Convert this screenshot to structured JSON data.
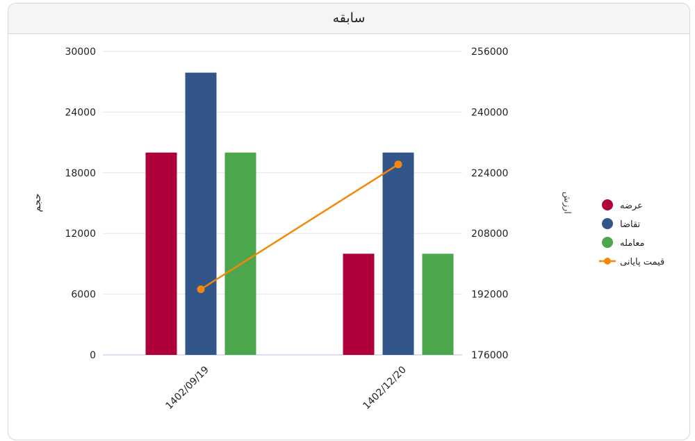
{
  "title": "سابقه",
  "chart_data": {
    "type": "bar",
    "title": "سابقه",
    "categories": [
      "1402/09/19",
      "1402/12/20"
    ],
    "series": [
      {
        "name": "عرضه",
        "type": "bar",
        "axis": "left",
        "color": "#b0003c",
        "values": [
          20000,
          10000
        ]
      },
      {
        "name": "تقاضا",
        "type": "bar",
        "axis": "left",
        "color": "#32568a",
        "values": [
          27900,
          20000
        ]
      },
      {
        "name": "معامله",
        "type": "bar",
        "axis": "left",
        "color": "#4ca64c",
        "values": [
          20000,
          10000
        ]
      },
      {
        "name": "قیمت پایانی",
        "type": "line",
        "axis": "right",
        "color": "#f5870a",
        "values": [
          193300,
          226200
        ]
      }
    ],
    "y_left": {
      "label": "حجم",
      "range": [
        0,
        30000
      ],
      "ticks": [
        0,
        6000,
        12000,
        18000,
        24000,
        30000
      ]
    },
    "y_right": {
      "label": "ارزش",
      "range": [
        176000,
        256000
      ],
      "ticks": [
        176000,
        192000,
        208000,
        224000,
        240000,
        256000
      ]
    },
    "grid": true,
    "legend": "right"
  }
}
